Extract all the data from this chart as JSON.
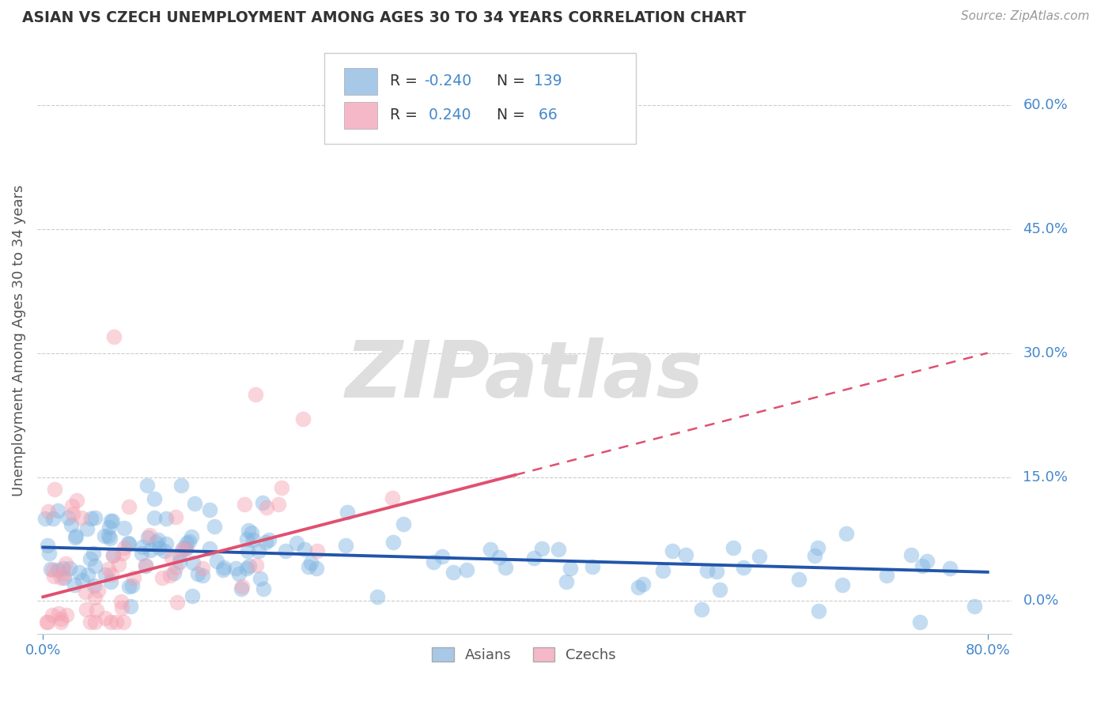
{
  "title": "ASIAN VS CZECH UNEMPLOYMENT AMONG AGES 30 TO 34 YEARS CORRELATION CHART",
  "source": "Source: ZipAtlas.com",
  "ylabel": "Unemployment Among Ages 30 to 34 years",
  "ytick_labels": [
    "0.0%",
    "15.0%",
    "30.0%",
    "45.0%",
    "60.0%"
  ],
  "ytick_values": [
    0.0,
    0.15,
    0.3,
    0.45,
    0.6
  ],
  "xlim": [
    -0.005,
    0.82
  ],
  "ylim": [
    -0.04,
    0.67
  ],
  "asian_R": -0.24,
  "asian_N": 139,
  "czech_R": 0.24,
  "czech_N": 66,
  "asian_color": "#7eb3e0",
  "czech_color": "#f5a0b0",
  "asian_line_color": "#2255aa",
  "czech_line_color": "#e05070",
  "legend_asian_color": "#a8c8e8",
  "legend_czech_color": "#f5b8c8",
  "watermark_text": "ZIPatlas",
  "background_color": "#ffffff",
  "grid_color": "#cccccc",
  "title_color": "#333333",
  "axis_label_color": "#555555",
  "tick_color": "#4488cc",
  "legend_R_label_color": "#333333",
  "legend_R_value_asian": "#cc2222",
  "legend_R_value_czech": "#cc2222",
  "legend_N_color": "#4488cc",
  "legend_text_color": "#4488cc",
  "czech_line_x_solid_end": 0.4,
  "czech_line_y_at_0": 0.005,
  "czech_line_y_at_80": 0.3,
  "asian_line_y_at_0": 0.065,
  "asian_line_y_at_80": 0.035
}
